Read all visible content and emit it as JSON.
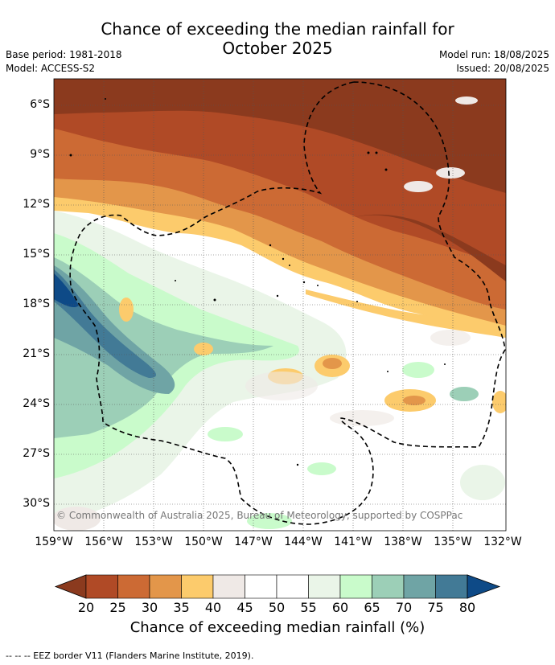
{
  "title_line1": "Chance of exceeding the median rainfall for",
  "title_line2": "October 2025",
  "meta": {
    "base_period": "Base period: 1981-2018",
    "model": "Model: ACCESS-S2",
    "model_run": "Model run: 18/08/2025",
    "issued": "Issued: 20/08/2025"
  },
  "copyright": "© Commonwealth of Australia 2025, Bureau of Meteorology, supported by COSPPac",
  "lat_labels": [
    "6°S",
    "9°S",
    "12°S",
    "15°S",
    "18°S",
    "21°S",
    "24°S",
    "27°S",
    "30°S"
  ],
  "lon_labels": [
    "159°W",
    "156°W",
    "153°W",
    "150°W",
    "147°W",
    "144°W",
    "141°W",
    "138°W",
    "135°W",
    "132°W"
  ],
  "colorbar": {
    "ticks": [
      "20",
      "25",
      "30",
      "35",
      "40",
      "45",
      "50",
      "55",
      "60",
      "65",
      "70",
      "75",
      "80"
    ],
    "colors": [
      "#8b3a1e",
      "#b04a26",
      "#cc6a34",
      "#e3964a",
      "#fccb6c",
      "#efe9e6",
      "#ffffff",
      "#ffffff",
      "#eaf5e8",
      "#c9fbcb",
      "#9ccfb7",
      "#6fa4a5",
      "#427a96",
      "#0e4a87"
    ],
    "label": "Chance of exceeding median rainfall (%)"
  },
  "footer": "--  --  -- EEZ border V11 (Flanders Marine Institute, 2019)."
}
